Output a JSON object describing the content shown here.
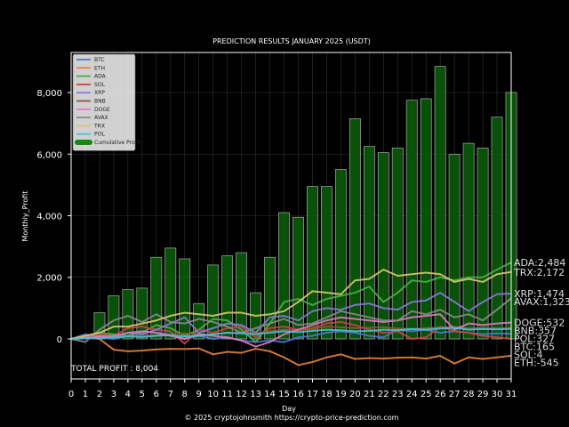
{
  "chart_data": {
    "type": "bar+line",
    "title": "PREDICTION RESULTS JANUARY 2025 (USDT)",
    "xlabel": "Day",
    "ylabel": "Monthly_Profit",
    "xlim": [
      0,
      31
    ],
    "ylim": [
      -1300,
      9300
    ],
    "x_ticks": [
      0,
      1,
      2,
      3,
      4,
      5,
      6,
      7,
      8,
      9,
      10,
      11,
      12,
      13,
      14,
      15,
      16,
      17,
      18,
      19,
      20,
      21,
      22,
      23,
      24,
      25,
      26,
      27,
      28,
      29,
      30,
      31
    ],
    "y_ticks": [
      0,
      2000,
      4000,
      6000,
      8000
    ],
    "y_tick_labels": [
      "0",
      "2,000",
      "4,000",
      "6,000",
      "8,000"
    ],
    "legend_position": "top-left",
    "total_profit_label": "TOTAL PROFIT : 8,004",
    "footer": "© 2025 cryptojohnsmith  https://crypto-price-prediction.com",
    "cumulative": {
      "name": "Cumulative Profit",
      "color": "#0a5a0a",
      "x": [
        2,
        3,
        4,
        5,
        6,
        7,
        8,
        9,
        10,
        11,
        12,
        13,
        14,
        15,
        16,
        17,
        18,
        19,
        20,
        21,
        22,
        23,
        24,
        25,
        26,
        27,
        28,
        29,
        30,
        31
      ],
      "values": [
        850,
        1400,
        1600,
        1650,
        2650,
        2950,
        2600,
        1150,
        2400,
        2700,
        2800,
        1500,
        2650,
        4100,
        3950,
        4950,
        4950,
        5500,
        7150,
        6250,
        6050,
        6200,
        7750,
        7800,
        8850,
        6000,
        6350,
        6200,
        7200,
        8004
      ]
    },
    "series": [
      {
        "name": "BTC",
        "color": "#4a7bd0",
        "final_label": "BTC:165",
        "values": [
          0,
          150,
          50,
          0,
          100,
          250,
          200,
          150,
          0,
          100,
          0,
          50,
          -50,
          -100,
          -50,
          -100,
          50,
          100,
          200,
          250,
          200,
          100,
          50,
          300,
          250,
          300,
          200,
          250,
          200,
          150,
          180,
          165
        ]
      },
      {
        "name": "ETH",
        "color": "#e8823a",
        "final_label": "ETH:-545",
        "values": [
          0,
          50,
          0,
          -350,
          -400,
          -380,
          -340,
          -320,
          -330,
          -310,
          -500,
          -420,
          -450,
          -320,
          -400,
          -600,
          -850,
          -750,
          -600,
          -500,
          -650,
          -620,
          -640,
          -610,
          -600,
          -640,
          -550,
          -800,
          -600,
          -650,
          -600,
          -545
        ]
      },
      {
        "name": "ADA",
        "color": "#4ab04a",
        "final_label": "ADA:2,484",
        "values": [
          0,
          100,
          200,
          150,
          100,
          200,
          450,
          350,
          100,
          300,
          650,
          600,
          300,
          -100,
          500,
          1200,
          1300,
          1100,
          1300,
          1400,
          1500,
          1700,
          1200,
          1500,
          1900,
          1850,
          2000,
          1900,
          2000,
          2000,
          2250,
          2484
        ]
      },
      {
        "name": "SOL",
        "color": "#d04040",
        "final_label": "SOL:4",
        "values": [
          0,
          80,
          150,
          100,
          350,
          400,
          300,
          250,
          -150,
          300,
          200,
          350,
          400,
          50,
          350,
          400,
          300,
          350,
          500,
          550,
          450,
          300,
          200,
          250,
          0,
          50,
          400,
          250,
          200,
          100,
          50,
          4
        ]
      },
      {
        "name": "XRP",
        "color": "#8a7ad8",
        "final_label": "XRP:1,474",
        "values": [
          0,
          50,
          100,
          50,
          200,
          150,
          300,
          500,
          700,
          200,
          350,
          500,
          450,
          200,
          700,
          750,
          600,
          900,
          1000,
          950,
          1100,
          1150,
          1000,
          950,
          1200,
          1250,
          1500,
          1200,
          900,
          1200,
          1450,
          1474
        ]
      },
      {
        "name": "BNB",
        "color": "#8a5a3a",
        "final_label": "BNB:357",
        "values": [
          0,
          20,
          40,
          60,
          80,
          100,
          120,
          150,
          180,
          140,
          150,
          200,
          220,
          180,
          250,
          300,
          280,
          320,
          400,
          380,
          350,
          360,
          380,
          340,
          320,
          350,
          380,
          400,
          340,
          360,
          350,
          357
        ]
      },
      {
        "name": "DOGE",
        "color": "#e07ac0",
        "final_label": "DOGE:532",
        "values": [
          0,
          30,
          80,
          100,
          200,
          250,
          200,
          100,
          0,
          150,
          100,
          50,
          -50,
          -250,
          -100,
          150,
          300,
          450,
          600,
          700,
          650,
          600,
          550,
          600,
          700,
          750,
          800,
          300,
          500,
          450,
          500,
          532
        ]
      },
      {
        "name": "AVAX",
        "color": "#8a8a8a",
        "final_label": "AVAX:1,323",
        "values": [
          0,
          -100,
          300,
          600,
          750,
          550,
          800,
          550,
          500,
          650,
          550,
          400,
          200,
          350,
          500,
          650,
          450,
          500,
          700,
          900,
          800,
          700,
          600,
          600,
          900,
          800,
          950,
          700,
          800,
          600,
          950,
          1323
        ]
      },
      {
        "name": "TRX",
        "color": "#d8c870",
        "final_label": "TRX:2,172",
        "values": [
          0,
          100,
          200,
          400,
          400,
          500,
          600,
          750,
          850,
          800,
          750,
          850,
          850,
          750,
          800,
          900,
          1200,
          1550,
          1500,
          1450,
          1900,
          1950,
          2250,
          2050,
          2100,
          2150,
          2100,
          1850,
          1950,
          1850,
          2100,
          2172
        ]
      },
      {
        "name": "POL",
        "color": "#4ac0d8",
        "final_label": "POL:327",
        "values": [
          0,
          20,
          30,
          50,
          80,
          60,
          100,
          120,
          80,
          100,
          150,
          200,
          180,
          150,
          200,
          250,
          220,
          260,
          300,
          280,
          250,
          260,
          300,
          280,
          320,
          300,
          340,
          360,
          300,
          320,
          310,
          327
        ]
      }
    ]
  }
}
